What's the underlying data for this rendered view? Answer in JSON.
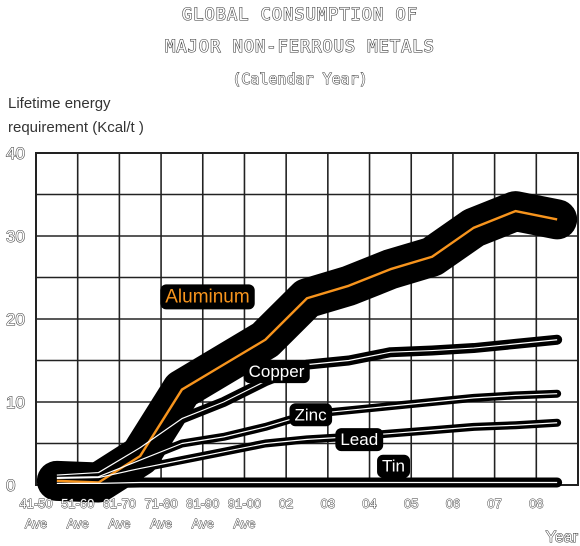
{
  "chart_data": {
    "type": "line",
    "title_lines": [
      "GLOBAL CONSUMPTION OF",
      "MAJOR NON-FERROUS METALS"
    ],
    "subtitle": "(Calendar Year)",
    "ylabel_lines": [
      "Lifetime energy",
      "requirement (Kcal/t )"
    ],
    "xlabel": "Year",
    "ylim": [
      0,
      40
    ],
    "yticks": [
      0,
      10,
      20,
      30,
      40
    ],
    "categories": [
      {
        "top": "41-50",
        "bottom": "Ave"
      },
      {
        "top": "51-60",
        "bottom": "Ave"
      },
      {
        "top": "61-70",
        "bottom": "Ave"
      },
      {
        "top": "71-80",
        "bottom": "Ave"
      },
      {
        "top": "81-90",
        "bottom": "Ave"
      },
      {
        "top": "91-00",
        "bottom": "Ave"
      },
      {
        "top": "02",
        "bottom": ""
      },
      {
        "top": "03",
        "bottom": ""
      },
      {
        "top": "04",
        "bottom": ""
      },
      {
        "top": "05",
        "bottom": ""
      },
      {
        "top": "06",
        "bottom": ""
      },
      {
        "top": "07",
        "bottom": ""
      },
      {
        "top": "08",
        "bottom": ""
      }
    ],
    "series": [
      {
        "name": "Aluminum",
        "color": "#f7941d",
        "highlight": true,
        "values": [
          0.5,
          0.3,
          3.5,
          11.5,
          14.5,
          17.5,
          22.5,
          24.0,
          26.0,
          27.5,
          31.0,
          33.0,
          32.0
        ]
      },
      {
        "name": "Copper",
        "color": "#ffffff",
        "values": [
          1.2,
          1.5,
          4.5,
          8.0,
          10.0,
          12.5,
          14.5,
          15.0,
          16.0,
          16.2,
          16.5,
          17.0,
          17.5
        ]
      },
      {
        "name": "Zinc",
        "color": "#ffffff",
        "values": [
          0.9,
          1.0,
          3.0,
          5.0,
          5.8,
          7.0,
          8.5,
          9.0,
          9.5,
          10.0,
          10.5,
          10.8,
          11.0
        ]
      },
      {
        "name": "Lead",
        "color": "#ffffff",
        "values": [
          0.8,
          0.9,
          2.0,
          3.0,
          4.0,
          5.0,
          5.5,
          5.8,
          6.2,
          6.6,
          7.0,
          7.2,
          7.5
        ]
      },
      {
        "name": "Tin",
        "color": "#ffffff",
        "values": [
          0.2,
          0.2,
          0.3,
          0.3,
          0.3,
          0.3,
          0.3,
          0.3,
          0.3,
          0.3,
          0.3,
          0.3,
          0.3
        ]
      }
    ],
    "grid": true,
    "legend": "inline labels"
  }
}
